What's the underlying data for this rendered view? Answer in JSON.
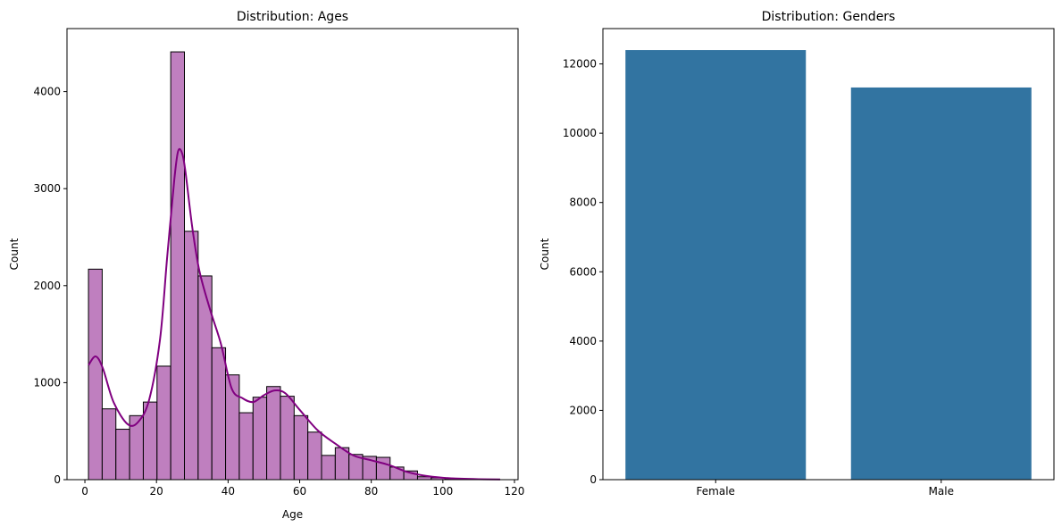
{
  "chart_data": [
    {
      "type": "histogram",
      "title": "Distribution: Ages",
      "xlabel": "Age",
      "ylabel": "Count",
      "xlim": [
        -5,
        121
      ],
      "ylim": [
        0,
        4650
      ],
      "xticks": [
        0,
        20,
        40,
        60,
        80,
        100,
        120
      ],
      "yticks": [
        0,
        1000,
        2000,
        3000,
        4000
      ],
      "bar_color": "#bf7fbf",
      "edge_color": "#000000",
      "kde_color": "#800080",
      "bins": {
        "start": 1,
        "width": 3.83,
        "counts": [
          2170,
          730,
          520,
          660,
          800,
          1170,
          4410,
          2560,
          2100,
          1360,
          1080,
          690,
          850,
          960,
          860,
          660,
          490,
          250,
          330,
          260,
          240,
          230,
          130,
          90,
          30,
          20,
          10,
          5,
          3,
          2
        ]
      },
      "kde": {
        "x": [
          1,
          3,
          5,
          8,
          12,
          15,
          18,
          21,
          23,
          25,
          26,
          27,
          28,
          30,
          32,
          35,
          38,
          41,
          44,
          47,
          50,
          53,
          56,
          60,
          65,
          70,
          75,
          80,
          85,
          90,
          95,
          100,
          105,
          110,
          116
        ],
        "y": [
          1180,
          1270,
          1150,
          800,
          570,
          600,
          830,
          1450,
          2300,
          3100,
          3380,
          3380,
          3200,
          2600,
          2150,
          1750,
          1400,
          940,
          840,
          800,
          870,
          920,
          890,
          720,
          510,
          370,
          250,
          200,
          150,
          80,
          40,
          20,
          10,
          5,
          2
        ]
      }
    },
    {
      "type": "bar",
      "title": "Distribution: Genders",
      "xlabel": "",
      "ylabel": "Count",
      "categories": [
        "Female",
        "Male"
      ],
      "values": [
        12400,
        11320
      ],
      "ylim": [
        0,
        13020
      ],
      "yticks": [
        0,
        2000,
        4000,
        6000,
        8000,
        10000,
        12000
      ],
      "bar_color": "#3274a1"
    }
  ]
}
